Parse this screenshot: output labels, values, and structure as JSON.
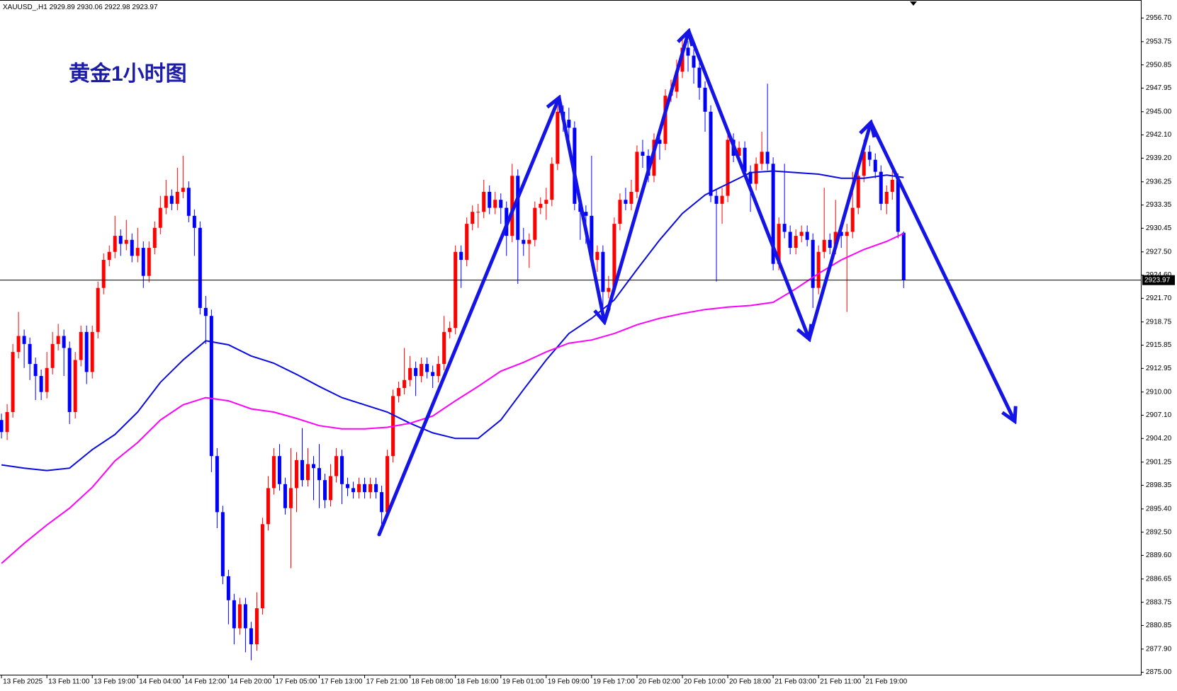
{
  "chart_data": {
    "type": "candlestick",
    "symbol": "XAUUSD_,H1",
    "title": "黄金1小时图",
    "up_color": "#ff0000",
    "down_color": "#0000ff",
    "xlim": [
      -0.26,
      200.8
    ],
    "ylim": [
      2874.7,
      2958.95
    ],
    "xticks": [
      {
        "value": 0,
        "label": "13 Feb 2025"
      },
      {
        "value": 8,
        "label": "13 Feb 11:00"
      },
      {
        "value": 16,
        "label": "13 Feb 19:00"
      },
      {
        "value": 24,
        "label": "14 Feb 04:00"
      },
      {
        "value": 32,
        "label": "14 Feb 12:00"
      },
      {
        "value": 40,
        "label": "14 Feb 20:00"
      },
      {
        "value": 48,
        "label": "17 Feb 05:00"
      },
      {
        "value": 56,
        "label": "17 Feb 13:00"
      },
      {
        "value": 64,
        "label": "17 Feb 21:00"
      },
      {
        "value": 72,
        "label": "18 Feb 08:00"
      },
      {
        "value": 80,
        "label": "18 Feb 16:00"
      },
      {
        "value": 88,
        "label": "19 Feb 01:00"
      },
      {
        "value": 96,
        "label": "19 Feb 09:00"
      },
      {
        "value": 104,
        "label": "19 Feb 17:00"
      },
      {
        "value": 112,
        "label": "20 Feb 02:00"
      },
      {
        "value": 120,
        "label": "20 Feb 10:00"
      },
      {
        "value": 128,
        "label": "20 Feb 18:00"
      },
      {
        "value": 136,
        "label": "21 Feb 03:00"
      },
      {
        "value": 144,
        "label": "21 Feb 11:00"
      },
      {
        "value": 152,
        "label": "21 Feb 19:00"
      }
    ],
    "yticks": [
      {
        "value": 2956.7,
        "label": "2956.70"
      },
      2953.75,
      2950.85,
      2947.95,
      {
        "value": 2945,
        "label": "2945.00"
      },
      {
        "value": 2942.1,
        "label": "2942.10"
      },
      {
        "value": 2939.2,
        "label": "2939.20"
      },
      2936.25,
      2933.35,
      2930.45,
      {
        "value": 2927.5,
        "label": "2927.50"
      },
      {
        "value": 2924.6,
        "label": "2924.60"
      },
      {
        "value": 2921.7,
        "label": "2921.70"
      },
      2918.75,
      2915.85,
      2912.95,
      {
        "value": 2910,
        "label": "2910.00"
      },
      {
        "value": 2907.1,
        "label": "2907.10"
      },
      {
        "value": 2904.2,
        "label": "2904.20"
      },
      2901.25,
      2898.35,
      {
        "value": 2895.4,
        "label": "2895.40"
      },
      {
        "value": 2892.5,
        "label": "2892.50"
      },
      {
        "value": 2889.6,
        "label": "2889.60"
      },
      2886.65,
      2883.75,
      2880.85,
      {
        "value": 2877.9,
        "label": "2877.90"
      },
      {
        "value": 2875,
        "label": "2875.00"
      }
    ],
    "open": [
      2906.5,
      2905.0,
      2907.5,
      2915.0,
      2917.0,
      2916.0,
      2913.5,
      2912.0,
      2910.0,
      2913.0,
      2916.0,
      2917.0,
      2915.5,
      2907.5,
      2914.0,
      2917.5,
      2912.5,
      2917.5,
      2923.0,
      2926.5,
      2927.5,
      2929.5,
      2928.5,
      2929.0,
      2927.0,
      2928.0,
      2924.5,
      2928.0,
      2930.5,
      2933.0,
      2934.5,
      2933.5,
      2935.0,
      2935.5,
      2932.0,
      2930.5,
      2920.5,
      2919.5,
      2902.0,
      2895.0,
      2887.0,
      2884.0,
      2880.5,
      2883.5,
      2880.5,
      2878.5,
      2883.0,
      2893.5,
      2898.0,
      2902.0,
      2898.5,
      2895.5,
      2898.0,
      2901.5,
      2899.0,
      2901.0,
      2900.5,
      2899.0,
      2896.5,
      2899.5,
      2902.0,
      2898.5,
      2898.0,
      2897.5,
      2898.5,
      2897.5,
      2898.5,
      2897.5,
      2895.0,
      2902.0,
      2909.5,
      2910.5,
      2911.5,
      2913.0,
      2912.0,
      2913.5,
      2912.5,
      2912.0,
      2913.5,
      2917.5,
      2918.0,
      2927.5,
      2926.5,
      2931.0,
      2932.5,
      2932.5,
      2935.0,
      2933.0,
      2934.0,
      2933.0,
      2929.5,
      2937.0,
      2929.0,
      2928.5,
      2929.0,
      2933.0,
      2933.5,
      2934.0,
      2938.5,
      2945.0,
      2944.0,
      2943.0,
      2933.5,
      2932.5,
      2932.0,
      2926.5,
      2927.5,
      2922.5,
      2923.0,
      2931.0,
      2934.0,
      2933.5,
      2935.0,
      2940.0,
      2939.5,
      2937.0,
      2941.5,
      2941.0,
      2947.0,
      2947.5,
      2950.0,
      2953.0,
      2952.0,
      2950.5,
      2948.0,
      2945.0,
      2934.5,
      2933.5,
      2934.5,
      2941.5,
      2939.5,
      2940.5,
      2937.5,
      2936.0,
      2938.5,
      2940.0,
      2938.5,
      2926.0,
      2931.0,
      2930.0,
      2928.0,
      2929.5,
      2930.0,
      2929.0,
      2923.0,
      2927.5,
      2929.0,
      2928.0,
      2930.0,
      2929.5,
      2930.0,
      2933.0,
      2937.0,
      2940.0,
      2939.0,
      2937.5,
      2933.5,
      2935.0,
      2936.5,
      2929.89
    ],
    "high": [
      2907.3,
      2908.5,
      2916.0,
      2920.0,
      2917.8,
      2916.8,
      2914.3,
      2912.8,
      2915.0,
      2917.5,
      2918.5,
      2917.8,
      2916.3,
      2915.0,
      2918.3,
      2918.3,
      2918.3,
      2923.8,
      2927.3,
      2928.3,
      2932.0,
      2930.3,
      2931.5,
      2929.8,
      2930.5,
      2928.8,
      2928.8,
      2931.3,
      2934.5,
      2936.5,
      2935.3,
      2938.0,
      2939.5,
      2936.3,
      2932.8,
      2931.3,
      2922.0,
      2920.3,
      2903.0,
      2895.8,
      2887.8,
      2884.8,
      2884.3,
      2884.3,
      2881.3,
      2885.0,
      2894.3,
      2899.5,
      2903.0,
      2903.5,
      2899.3,
      2903.0,
      2902.5,
      2905.5,
      2903.0,
      2902.0,
      2903.5,
      2899.8,
      2901.0,
      2903.0,
      2902.8,
      2899.3,
      2898.8,
      2899.3,
      2899.3,
      2899.3,
      2899.3,
      2898.3,
      2902.8,
      2910.3,
      2911.3,
      2915.5,
      2914.5,
      2913.8,
      2914.3,
      2914.3,
      2913.3,
      2914.5,
      2919.5,
      2918.8,
      2928.3,
      2928.3,
      2931.8,
      2933.3,
      2933.5,
      2936.5,
      2935.8,
      2935.0,
      2934.8,
      2933.8,
      2938.5,
      2937.8,
      2930.5,
      2929.8,
      2933.8,
      2934.3,
      2935.5,
      2939.3,
      2945.8,
      2945.8,
      2945.5,
      2943.8,
      2934.3,
      2933.3,
      2939.5,
      2928.3,
      2928.3,
      2924.5,
      2931.8,
      2934.8,
      2935.5,
      2936.5,
      2940.8,
      2941.5,
      2940.3,
      2942.3,
      2942.5,
      2947.8,
      2949.0,
      2951.5,
      2954.5,
      2953.8,
      2952.8,
      2951.3,
      2948.8,
      2945.8,
      2935.3,
      2935.5,
      2942.3,
      2942.3,
      2941.3,
      2941.3,
      2938.3,
      2939.3,
      2942.5,
      2948.5,
      2939.3,
      2931.8,
      2938.5,
      2930.8,
      2930.3,
      2930.8,
      2930.8,
      2929.8,
      2928.3,
      2935.5,
      2929.8,
      2934.0,
      2930.8,
      2931.0,
      2937.5,
      2937.8,
      2941.5,
      2940.8,
      2939.8,
      2938.3,
      2935.8,
      2938.5,
      2937.3,
      2930.06
    ],
    "low": [
      2904.2,
      2904.0,
      2906.8,
      2914.2,
      2913.0,
      2911.5,
      2909.0,
      2909.0,
      2909.2,
      2912.2,
      2915.2,
      2912.0,
      2906.0,
      2906.7,
      2913.2,
      2911.0,
      2911.7,
      2916.7,
      2922.2,
      2925.7,
      2926.7,
      2927.0,
      2927.7,
      2926.2,
      2926.2,
      2923.0,
      2923.7,
      2927.2,
      2929.7,
      2932.2,
      2932.7,
      2932.7,
      2934.2,
      2931.2,
      2927.0,
      2919.7,
      2916.0,
      2900.0,
      2893.0,
      2886.0,
      2881.0,
      2878.5,
      2879.7,
      2877.5,
      2876.5,
      2877.7,
      2882.2,
      2892.7,
      2897.2,
      2897.7,
      2894.7,
      2888.0,
      2895.0,
      2898.2,
      2898.2,
      2896.5,
      2895.5,
      2895.5,
      2895.7,
      2898.7,
      2896.0,
      2897.0,
      2896.7,
      2896.7,
      2896.7,
      2896.7,
      2896.7,
      2893.5,
      2894.2,
      2901.2,
      2908.7,
      2909.7,
      2910.7,
      2909.5,
      2911.2,
      2911.7,
      2910.5,
      2911.2,
      2912.7,
      2916.7,
      2917.2,
      2923.0,
      2925.7,
      2930.2,
      2930.5,
      2931.7,
      2932.2,
      2932.2,
      2931.0,
      2927.0,
      2928.7,
      2923.5,
      2927.0,
      2925.5,
      2928.2,
      2932.2,
      2931.5,
      2933.2,
      2937.7,
      2942.5,
      2941.5,
      2932.7,
      2929.0,
      2928.5,
      2925.7,
      2925.0,
      2919.5,
      2921.7,
      2922.2,
      2930.2,
      2932.7,
      2932.7,
      2934.2,
      2938.0,
      2936.2,
      2936.2,
      2939.0,
      2940.2,
      2946.2,
      2946.7,
      2949.2,
      2950.0,
      2948.5,
      2946.5,
      2942.5,
      2933.7,
      2923.8,
      2931.0,
      2933.7,
      2938.7,
      2938.7,
      2936.7,
      2932.5,
      2935.2,
      2937.7,
      2937.7,
      2925.2,
      2925.2,
      2929.2,
      2927.2,
      2927.2,
      2928.7,
      2928.2,
      2920.5,
      2922.2,
      2926.7,
      2927.2,
      2927.2,
      2928.0,
      2920.0,
      2929.2,
      2932.2,
      2936.2,
      2938.2,
      2936.7,
      2932.7,
      2932.2,
      2934.0,
      2929.2,
      2922.98
    ],
    "close": [
      2905.0,
      2907.5,
      2915.0,
      2917.0,
      2916.0,
      2913.5,
      2912.0,
      2910.0,
      2913.0,
      2916.0,
      2917.0,
      2915.5,
      2907.5,
      2914.0,
      2917.5,
      2912.5,
      2917.5,
      2923.0,
      2926.5,
      2927.5,
      2929.5,
      2928.5,
      2929.0,
      2927.0,
      2928.0,
      2924.5,
      2928.0,
      2930.5,
      2933.0,
      2934.5,
      2933.5,
      2935.0,
      2935.5,
      2932.0,
      2930.5,
      2920.5,
      2919.5,
      2902.0,
      2895.0,
      2887.0,
      2884.0,
      2880.5,
      2883.5,
      2880.5,
      2878.5,
      2883.0,
      2893.5,
      2898.0,
      2902.0,
      2898.5,
      2895.5,
      2898.0,
      2901.5,
      2899.0,
      2901.0,
      2900.5,
      2899.0,
      2896.5,
      2899.5,
      2902.0,
      2898.5,
      2898.0,
      2897.5,
      2898.5,
      2897.5,
      2898.5,
      2897.5,
      2895.0,
      2902.0,
      2909.5,
      2910.5,
      2911.5,
      2913.0,
      2912.0,
      2913.5,
      2912.5,
      2912.0,
      2913.5,
      2917.5,
      2918.0,
      2927.5,
      2926.5,
      2931.0,
      2932.5,
      2932.5,
      2935.0,
      2933.0,
      2934.0,
      2933.0,
      2929.5,
      2937.0,
      2929.0,
      2928.5,
      2929.0,
      2933.0,
      2933.5,
      2934.0,
      2938.5,
      2945.0,
      2944.0,
      2943.0,
      2933.5,
      2932.5,
      2932.0,
      2926.5,
      2927.5,
      2922.5,
      2923.0,
      2931.0,
      2934.0,
      2933.5,
      2935.0,
      2940.0,
      2939.5,
      2937.0,
      2941.5,
      2941.0,
      2947.0,
      2947.5,
      2950.0,
      2953.0,
      2952.0,
      2950.5,
      2948.0,
      2945.0,
      2934.5,
      2933.5,
      2934.5,
      2941.5,
      2939.5,
      2940.5,
      2937.5,
      2936.0,
      2938.5,
      2940.0,
      2938.5,
      2926.0,
      2931.0,
      2930.0,
      2928.0,
      2929.5,
      2930.0,
      2929.0,
      2923.0,
      2927.5,
      2929.0,
      2928.0,
      2930.0,
      2929.5,
      2930.0,
      2933.0,
      2937.0,
      2940.0,
      2939.0,
      2937.5,
      2933.5,
      2935.0,
      2936.5,
      2930.0,
      2923.97
    ],
    "lines": [
      {
        "color": "#0a0ae6",
        "x": [
          0,
          4,
          8,
          12,
          16,
          20,
          24,
          28,
          32,
          36,
          40,
          44,
          48,
          52,
          56,
          60,
          64,
          68,
          72,
          76,
          80,
          84,
          88,
          92,
          96,
          100,
          104,
          108,
          112,
          116,
          120,
          124,
          128,
          132,
          136,
          140,
          144,
          148,
          152,
          156,
          159
        ],
        "values": [
          2900.9,
          2900.5,
          2900.2,
          2900.5,
          2902.8,
          2904.7,
          2907.5,
          2911.2,
          2914.0,
          2916.4,
          2915.9,
          2914.5,
          2913.6,
          2912.2,
          2910.7,
          2909.3,
          2908.4,
          2907.5,
          2906.1,
          2904.9,
          2904.2,
          2904.2,
          2906.5,
          2910.3,
          2914.0,
          2917.3,
          2919.2,
          2921.5,
          2925.3,
          2929.0,
          2932.3,
          2934.6,
          2936.0,
          2937.4,
          2937.6,
          2937.4,
          2937.2,
          2936.7,
          2936.7,
          2937.1,
          2936.8
        ]
      },
      {
        "color": "#ff00ff",
        "x": [
          0,
          4,
          8,
          12,
          16,
          20,
          24,
          28,
          32,
          36,
          40,
          44,
          48,
          52,
          56,
          60,
          64,
          68,
          72,
          76,
          80,
          84,
          88,
          92,
          96,
          100,
          104,
          108,
          112,
          116,
          120,
          124,
          128,
          132,
          136,
          140,
          144,
          148,
          152,
          156,
          159
        ],
        "values": [
          2888.6,
          2891.1,
          2893.4,
          2895.5,
          2898.1,
          2901.4,
          2903.7,
          2906.5,
          2908.4,
          2909.3,
          2908.9,
          2907.9,
          2907.5,
          2906.7,
          2905.8,
          2905.4,
          2905.4,
          2905.6,
          2906.1,
          2907.0,
          2908.9,
          2910.7,
          2912.6,
          2913.7,
          2915.0,
          2916.1,
          2916.5,
          2917.3,
          2918.4,
          2919.2,
          2919.8,
          2920.3,
          2920.6,
          2920.8,
          2921.2,
          2922.9,
          2924.8,
          2926.5,
          2927.8,
          2928.8,
          2929.8
        ]
      }
    ]
  }
}
